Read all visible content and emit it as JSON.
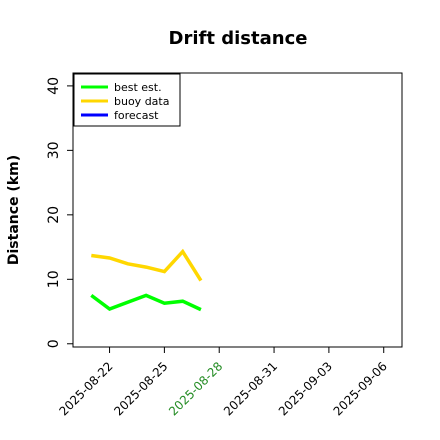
{
  "chart_data": {
    "type": "line",
    "title": "Drift distance",
    "ylabel": "Distance (km)",
    "xlabel": "",
    "ylim": [
      -0.5,
      42
    ],
    "yticks": [
      0,
      10,
      20,
      30,
      40
    ],
    "x_axis_dates": {
      "start": "2025-08-20",
      "end": "2025-09-07",
      "ticks": [
        {
          "date": "2025-08-22",
          "label": "2025-08-22",
          "color": "#000000"
        },
        {
          "date": "2025-08-25",
          "label": "2025-08-25",
          "color": "#000000"
        },
        {
          "date": "2025-08-28",
          "label": "2025-08-28",
          "color": "#228B22"
        },
        {
          "date": "2025-08-31",
          "label": "2025-08-31",
          "color": "#000000"
        },
        {
          "date": "2025-09-03",
          "label": "2025-09-03",
          "color": "#000000"
        },
        {
          "date": "2025-09-06",
          "label": "2025-09-06",
          "color": "#000000"
        }
      ]
    },
    "series": [
      {
        "name": "best est.",
        "color": "#00ff00",
        "points": [
          {
            "x": "2025-08-21",
            "y": 7.5
          },
          {
            "x": "2025-08-22",
            "y": 5.4
          },
          {
            "x": "2025-08-24",
            "y": 7.5
          },
          {
            "x": "2025-08-25",
            "y": 6.3
          },
          {
            "x": "2025-08-26",
            "y": 6.6
          },
          {
            "x": "2025-08-27",
            "y": 5.3
          }
        ]
      },
      {
        "name": "buoy data",
        "color": "#ffd700",
        "points": [
          {
            "x": "2025-08-21",
            "y": 13.7
          },
          {
            "x": "2025-08-22",
            "y": 13.3
          },
          {
            "x": "2025-08-23",
            "y": 12.4
          },
          {
            "x": "2025-08-24",
            "y": 11.9
          },
          {
            "x": "2025-08-25",
            "y": 11.2
          },
          {
            "x": "2025-08-26",
            "y": 14.3
          },
          {
            "x": "2025-08-27",
            "y": 9.8
          }
        ]
      },
      {
        "name": "forecast",
        "color": "#0000ff",
        "points": []
      }
    ],
    "legend_position": "top-left",
    "grid": false
  }
}
